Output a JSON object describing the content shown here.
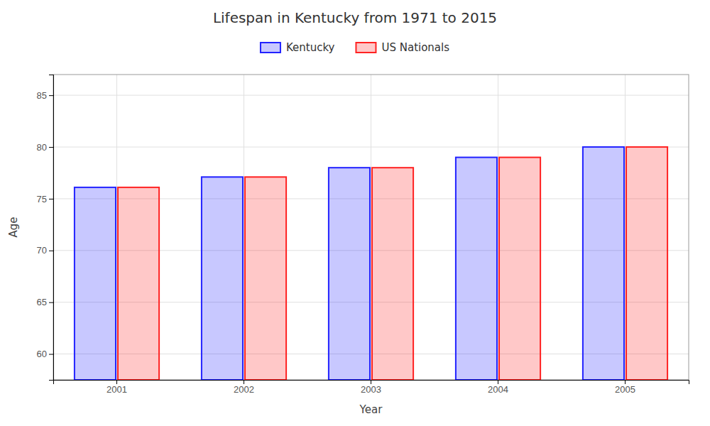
{
  "chart_data": {
    "type": "bar",
    "title": "Lifespan in Kentucky from 1971 to 2015",
    "xlabel": "Year",
    "ylabel": "Age",
    "categories": [
      "2001",
      "2002",
      "2003",
      "2004",
      "2005"
    ],
    "series": [
      {
        "name": "Kentucky",
        "color": "#2222ff",
        "values": [
          76.1,
          77.1,
          78.0,
          79.0,
          80.0
        ]
      },
      {
        "name": "US Nationals",
        "color": "#ff2222",
        "values": [
          76.1,
          77.1,
          78.0,
          79.0,
          80.0
        ]
      }
    ],
    "ylim": [
      57.5,
      87
    ],
    "yticks": [
      60,
      65,
      70,
      75,
      80,
      85
    ],
    "grid": true,
    "legend": "top"
  }
}
